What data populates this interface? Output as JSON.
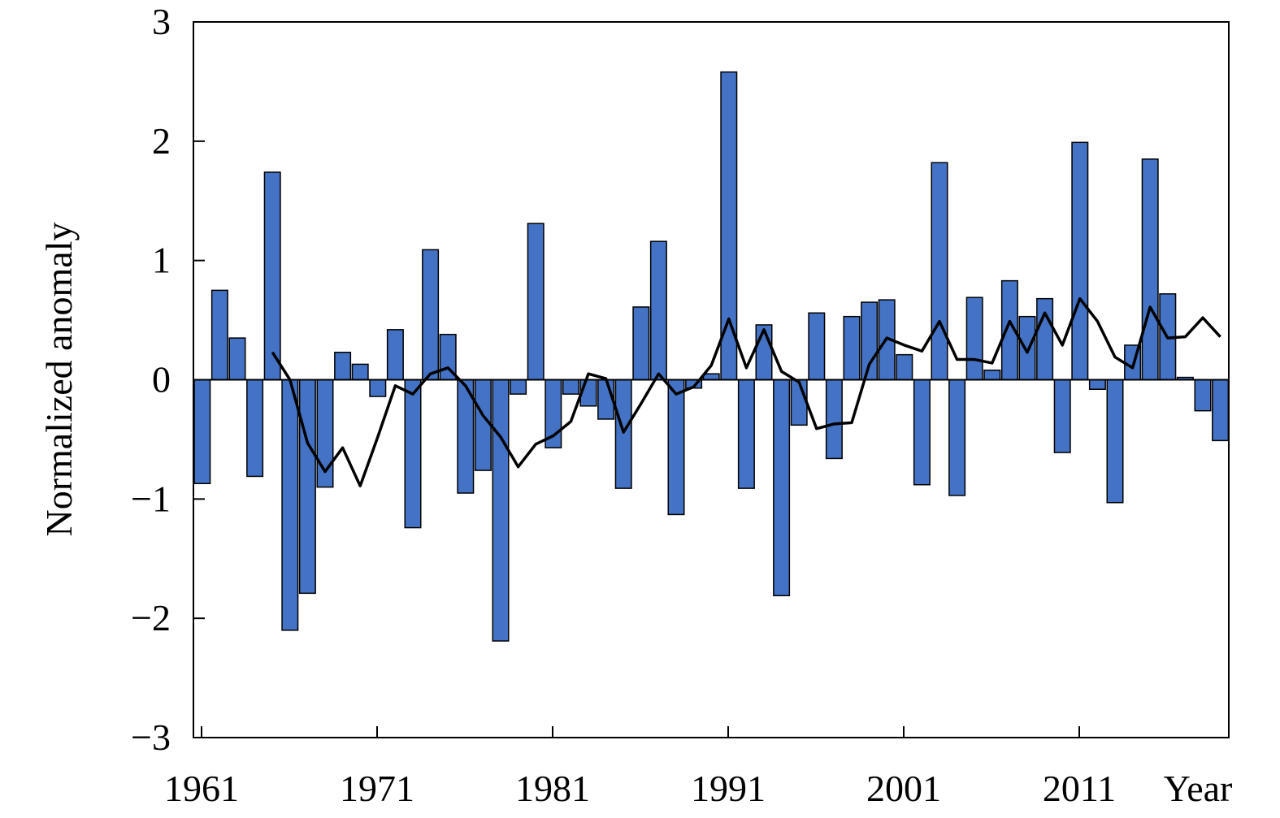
{
  "chart_data": {
    "type": "bar",
    "ylabel": "Normalized anomaly",
    "xlabel": "Year",
    "ylim": [
      -3,
      3
    ],
    "yticks": [
      3,
      2,
      1,
      0,
      -1,
      -2,
      -3
    ],
    "ytick_labels": [
      "3",
      "2",
      "1",
      "0",
      "−1",
      "−2",
      "−3"
    ],
    "xticks": [
      1961,
      1971,
      1981,
      1991,
      2001,
      2011
    ],
    "xtick_labels": [
      "1961",
      "1971",
      "1981",
      "1991",
      "2001",
      "2011"
    ],
    "grid": false,
    "bar_color": "#4472C4",
    "line_color": "#000000",
    "series": [
      {
        "type": "bar",
        "x": [
          1961,
          1962,
          1963,
          1964,
          1965,
          1966,
          1967,
          1968,
          1969,
          1970,
          1971,
          1972,
          1973,
          1974,
          1975,
          1976,
          1977,
          1978,
          1979,
          1980,
          1981,
          1982,
          1983,
          1984,
          1985,
          1986,
          1987,
          1988,
          1989,
          1990,
          1991,
          1992,
          1993,
          1994,
          1995,
          1996,
          1997,
          1998,
          1999,
          2000,
          2001,
          2002,
          2003,
          2004,
          2005,
          2006,
          2007,
          2008,
          2009,
          2010,
          2011,
          2012,
          2013,
          2014,
          2015,
          2016,
          2017,
          2018,
          2019
        ],
        "values": [
          -0.87,
          0.75,
          0.35,
          -0.81,
          1.74,
          -2.1,
          -1.79,
          -0.9,
          0.23,
          0.13,
          -0.14,
          0.42,
          -1.24,
          1.09,
          0.38,
          -0.95,
          -0.76,
          -2.19,
          -0.12,
          1.31,
          -0.57,
          -0.12,
          -0.22,
          -0.33,
          -0.91,
          0.61,
          1.16,
          -1.13,
          -0.07,
          0.05,
          2.58,
          -0.91,
          0.46,
          -1.81,
          -0.38,
          0.56,
          -0.66,
          0.53,
          0.65,
          0.67,
          0.21,
          -0.88,
          1.82,
          -0.97,
          0.69,
          0.08,
          0.83,
          0.53,
          0.68,
          -0.61,
          1.99,
          -0.08,
          -1.03,
          0.29,
          1.85,
          0.72,
          0.02,
          -0.26,
          -0.51
        ]
      },
      {
        "type": "line",
        "x": [
          1965,
          1966,
          1967,
          1968,
          1969,
          1970,
          1971,
          1972,
          1973,
          1974,
          1975,
          1976,
          1977,
          1978,
          1979,
          1980,
          1981,
          1982,
          1983,
          1984,
          1985,
          1986,
          1987,
          1988,
          1989,
          1990,
          1991,
          1992,
          1993,
          1994,
          1995,
          1996,
          1997,
          1998,
          1999,
          2000,
          2001,
          2002,
          2003,
          2004,
          2005,
          2006,
          2007,
          2008,
          2009,
          2010,
          2011,
          2012,
          2013,
          2014,
          2015,
          2016,
          2017,
          2018,
          2019
        ],
        "values": [
          0.23,
          0.0,
          -0.53,
          -0.77,
          -0.57,
          -0.89,
          -0.48,
          -0.05,
          -0.12,
          0.05,
          0.1,
          -0.05,
          -0.3,
          -0.48,
          -0.73,
          -0.54,
          -0.47,
          -0.35,
          0.05,
          0.01,
          -0.44,
          -0.2,
          0.05,
          -0.12,
          -0.06,
          0.12,
          0.51,
          0.1,
          0.42,
          0.07,
          -0.02,
          -0.41,
          -0.37,
          -0.36,
          0.13,
          0.35,
          0.29,
          0.24,
          0.49,
          0.17,
          0.17,
          0.14,
          0.49,
          0.23,
          0.56,
          0.29,
          0.68,
          0.49,
          0.19,
          0.1,
          0.61,
          0.35,
          0.36,
          0.52,
          0.36
        ]
      }
    ]
  }
}
